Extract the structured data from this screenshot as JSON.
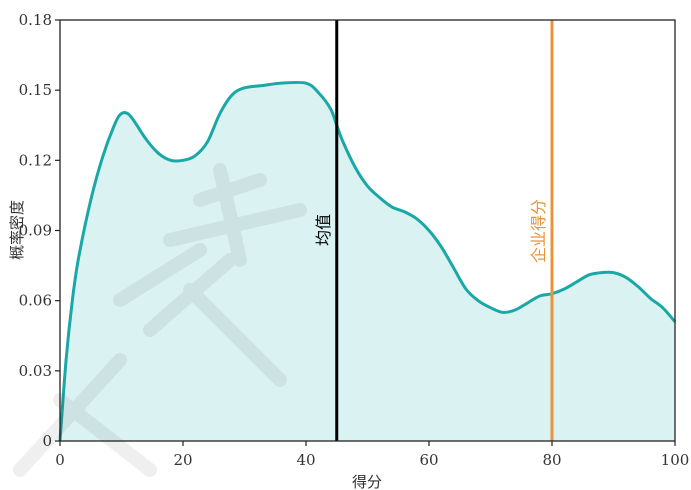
{
  "chart_data": {
    "type": "area",
    "xlabel": "得分",
    "ylabel": "概率密度",
    "xlim": [
      0,
      100
    ],
    "ylim": [
      0,
      0.18
    ],
    "x_ticks": [
      "0",
      "20",
      "40",
      "60",
      "80",
      "100"
    ],
    "y_ticks": [
      "0",
      "0.03",
      "0.06",
      "0.09",
      "0.12",
      "0.15",
      "0.18"
    ],
    "series": [
      {
        "x": [
          0,
          1,
          2,
          3,
          5,
          7,
          9,
          10,
          11,
          12,
          14,
          16,
          18,
          20,
          22,
          24,
          26,
          28,
          30,
          33,
          36,
          40,
          42,
          44,
          45,
          46,
          48,
          50,
          52,
          54,
          56,
          58,
          60,
          62,
          64,
          66,
          68,
          70,
          72,
          74,
          76,
          78,
          80,
          82,
          84,
          86,
          88,
          90,
          92,
          94,
          96,
          98,
          100
        ],
        "y": [
          0.0,
          0.035,
          0.06,
          0.078,
          0.103,
          0.122,
          0.136,
          0.14,
          0.14,
          0.137,
          0.129,
          0.123,
          0.12,
          0.12,
          0.122,
          0.128,
          0.14,
          0.148,
          0.151,
          0.152,
          0.153,
          0.153,
          0.149,
          0.142,
          0.135,
          0.128,
          0.117,
          0.109,
          0.104,
          0.1,
          0.098,
          0.095,
          0.09,
          0.083,
          0.074,
          0.065,
          0.06,
          0.057,
          0.055,
          0.056,
          0.059,
          0.062,
          0.063,
          0.065,
          0.068,
          0.071,
          0.072,
          0.072,
          0.07,
          0.066,
          0.061,
          0.057,
          0.051
        ],
        "line_color": "#1aa8a6",
        "fill_color": "#dbf2f2"
      }
    ],
    "markers": [
      {
        "label": "均值",
        "x": 45,
        "color": "#000000"
      },
      {
        "label": "企业得分",
        "x": 80,
        "color": "#e8943a"
      }
    ],
    "grid": false
  }
}
